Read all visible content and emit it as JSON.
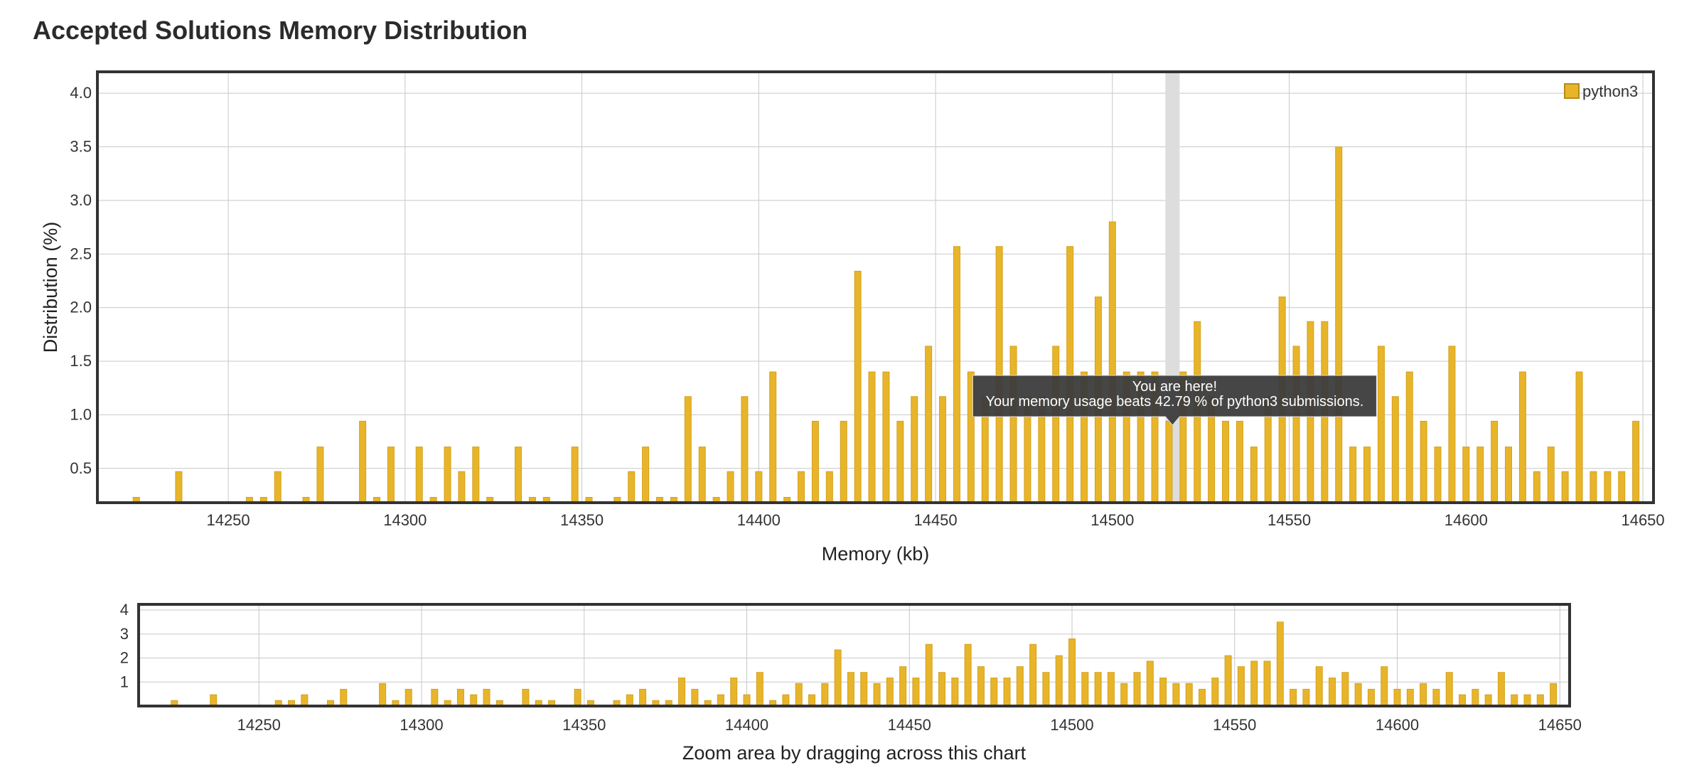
{
  "page": {
    "title": "Accepted Solutions Memory Distribution"
  },
  "colors": {
    "bar_fill": "#E8B52A",
    "bar_stroke": "#D3A11C",
    "frame": "#333333",
    "grid": "#C8C8C8",
    "highlight": "#DDDDDD",
    "tooltip_bg": "#3C3C3C"
  },
  "tooltip": {
    "line1": "You are here!",
    "line2": "Your memory usage beats 42.79 % of python3 submissions.",
    "x": 14517
  },
  "zoom": {
    "caption": "Zoom area by dragging across this chart",
    "ylim": [
      0,
      4
    ],
    "yticks": [
      1,
      2,
      3,
      4
    ]
  },
  "chart_data": {
    "type": "bar",
    "title": "",
    "xlabel": "Memory (kb)",
    "ylabel": "Distribution (%)",
    "xlim": [
      14213,
      14653
    ],
    "ylim": [
      0.18,
      4.2
    ],
    "xticks": [
      14250,
      14300,
      14350,
      14400,
      14450,
      14500,
      14550,
      14600,
      14650
    ],
    "yticks": [
      0.5,
      1.0,
      1.5,
      2.0,
      2.5,
      3.0,
      3.5,
      4.0
    ],
    "grid": true,
    "legend_position": "top-right",
    "series": [
      {
        "name": "python3",
        "points": [
          [
            14224,
            0.23
          ],
          [
            14236,
            0.47
          ],
          [
            14256,
            0.23
          ],
          [
            14260,
            0.23
          ],
          [
            14264,
            0.47
          ],
          [
            14272,
            0.23
          ],
          [
            14276,
            0.7
          ],
          [
            14288,
            0.94
          ],
          [
            14292,
            0.23
          ],
          [
            14296,
            0.7
          ],
          [
            14304,
            0.7
          ],
          [
            14308,
            0.23
          ],
          [
            14312,
            0.7
          ],
          [
            14316,
            0.47
          ],
          [
            14320,
            0.7
          ],
          [
            14324,
            0.23
          ],
          [
            14332,
            0.7
          ],
          [
            14336,
            0.23
          ],
          [
            14340,
            0.23
          ],
          [
            14348,
            0.7
          ],
          [
            14352,
            0.23
          ],
          [
            14360,
            0.23
          ],
          [
            14364,
            0.47
          ],
          [
            14368,
            0.7
          ],
          [
            14372,
            0.23
          ],
          [
            14376,
            0.23
          ],
          [
            14380,
            1.17
          ],
          [
            14384,
            0.7
          ],
          [
            14388,
            0.23
          ],
          [
            14392,
            0.47
          ],
          [
            14396,
            1.17
          ],
          [
            14400,
            0.47
          ],
          [
            14404,
            1.4
          ],
          [
            14408,
            0.23
          ],
          [
            14412,
            0.47
          ],
          [
            14416,
            0.94
          ],
          [
            14420,
            0.47
          ],
          [
            14424,
            0.94
          ],
          [
            14428,
            2.34
          ],
          [
            14432,
            1.4
          ],
          [
            14436,
            1.4
          ],
          [
            14440,
            0.94
          ],
          [
            14444,
            1.17
          ],
          [
            14448,
            1.64
          ],
          [
            14452,
            1.17
          ],
          [
            14456,
            2.57
          ],
          [
            14460,
            1.4
          ],
          [
            14464,
            1.17
          ],
          [
            14468,
            2.57
          ],
          [
            14472,
            1.64
          ],
          [
            14476,
            1.17
          ],
          [
            14480,
            1.17
          ],
          [
            14484,
            1.64
          ],
          [
            14488,
            2.57
          ],
          [
            14492,
            1.4
          ],
          [
            14496,
            2.1
          ],
          [
            14500,
            2.8
          ],
          [
            14504,
            1.4
          ],
          [
            14508,
            1.4
          ],
          [
            14512,
            1.4
          ],
          [
            14516,
            0.94
          ],
          [
            14520,
            1.4
          ],
          [
            14524,
            1.87
          ],
          [
            14528,
            1.17
          ],
          [
            14532,
            0.94
          ],
          [
            14536,
            0.94
          ],
          [
            14540,
            0.7
          ],
          [
            14544,
            1.17
          ],
          [
            14548,
            2.1
          ],
          [
            14552,
            1.64
          ],
          [
            14556,
            1.87
          ],
          [
            14560,
            1.87
          ],
          [
            14564,
            3.5
          ],
          [
            14568,
            0.7
          ],
          [
            14572,
            0.7
          ],
          [
            14576,
            1.64
          ],
          [
            14580,
            1.17
          ],
          [
            14584,
            1.4
          ],
          [
            14588,
            0.94
          ],
          [
            14592,
            0.7
          ],
          [
            14596,
            1.64
          ],
          [
            14600,
            0.7
          ],
          [
            14604,
            0.7
          ],
          [
            14608,
            0.94
          ],
          [
            14612,
            0.7
          ],
          [
            14616,
            1.4
          ],
          [
            14620,
            0.47
          ],
          [
            14624,
            0.7
          ],
          [
            14628,
            0.47
          ],
          [
            14632,
            1.4
          ],
          [
            14636,
            0.47
          ],
          [
            14640,
            0.47
          ],
          [
            14644,
            0.47
          ],
          [
            14648,
            0.94
          ]
        ]
      }
    ]
  }
}
